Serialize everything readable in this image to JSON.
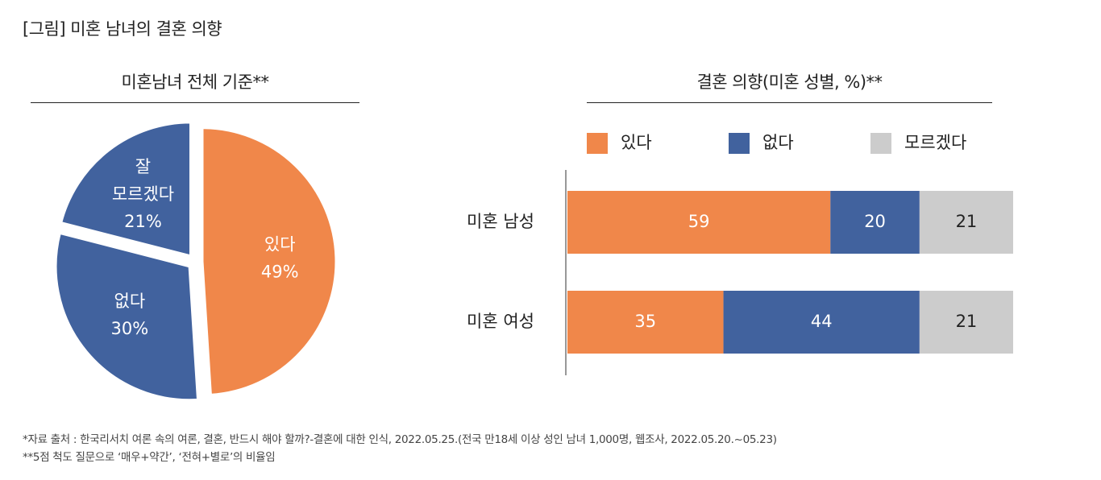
{
  "figure_title": "[그림] 미혼 남녀의 결혼 의향",
  "colors": {
    "yes": "#f0874a",
    "no": "#41629e",
    "unsure": "#cccccc",
    "label_text": "#ffffff"
  },
  "chart_data": [
    {
      "type": "pie",
      "title": "미혼남녀 전체 기준**",
      "slices": [
        {
          "label": "있다",
          "value": 49,
          "value_label": "49%",
          "color": "#f0874a"
        },
        {
          "label": "없다",
          "value": 30,
          "value_label": "30%",
          "color": "#41629e"
        },
        {
          "label_lines": [
            "잘",
            "모르겠다"
          ],
          "value": 21,
          "value_label": "21%",
          "color": "#41629e"
        }
      ]
    },
    {
      "type": "bar",
      "orientation": "horizontal",
      "stacked": true,
      "title": "결혼 의향(미혼 성별, %)**",
      "legend_position": "top",
      "categories": [
        "미혼 남성",
        "미혼 여성"
      ],
      "series": [
        {
          "name": "있다",
          "values": [
            59,
            35
          ],
          "color": "#f0874a"
        },
        {
          "name": "없다",
          "values": [
            20,
            44
          ],
          "color": "#41629e"
        },
        {
          "name": "모르겠다",
          "values": [
            21,
            21
          ],
          "color": "#cccccc"
        }
      ]
    }
  ],
  "footnotes": [
    "*자료 출처 : 한국리서치 여론 속의 여론, 결혼, 반드시 해야 할까?-결혼에 대한 인식, 2022.05.25.(전국 만18세 이상 성인 남녀 1,000명, 웹조사, 2022.05.20.~05.23)",
    "**5점 척도 질문으로 ‘매우+약간’, ‘전혀+별로’의 비율임"
  ]
}
